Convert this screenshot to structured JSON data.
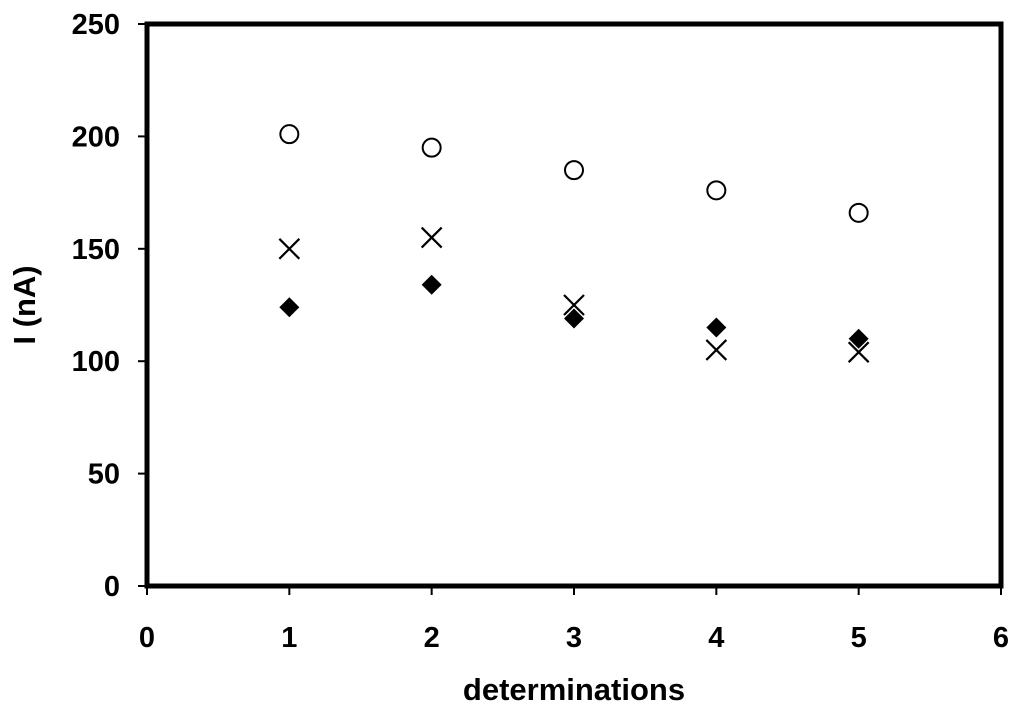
{
  "chart_data": {
    "type": "scatter",
    "title": "",
    "xlabel": "determinations",
    "ylabel": "I (nA)",
    "xlim": [
      0,
      6
    ],
    "ylim": [
      0,
      250
    ],
    "x_ticks": [
      0,
      1,
      2,
      3,
      4,
      5,
      6
    ],
    "y_ticks": [
      0,
      50,
      100,
      150,
      200,
      250
    ],
    "grid": false,
    "legend": "none",
    "series": [
      {
        "marker": "open-circle",
        "color": "#000000",
        "x": [
          1,
          2,
          3,
          4,
          5
        ],
        "y": [
          201,
          195,
          185,
          176,
          166
        ]
      },
      {
        "marker": "x-cross",
        "color": "#000000",
        "x": [
          1,
          2,
          3,
          4,
          5
        ],
        "y": [
          150,
          155,
          125,
          105,
          104
        ]
      },
      {
        "marker": "filled-diamond",
        "color": "#000000",
        "x": [
          1,
          2,
          3,
          4,
          5
        ],
        "y": [
          124,
          134,
          119,
          115,
          110
        ]
      }
    ]
  }
}
